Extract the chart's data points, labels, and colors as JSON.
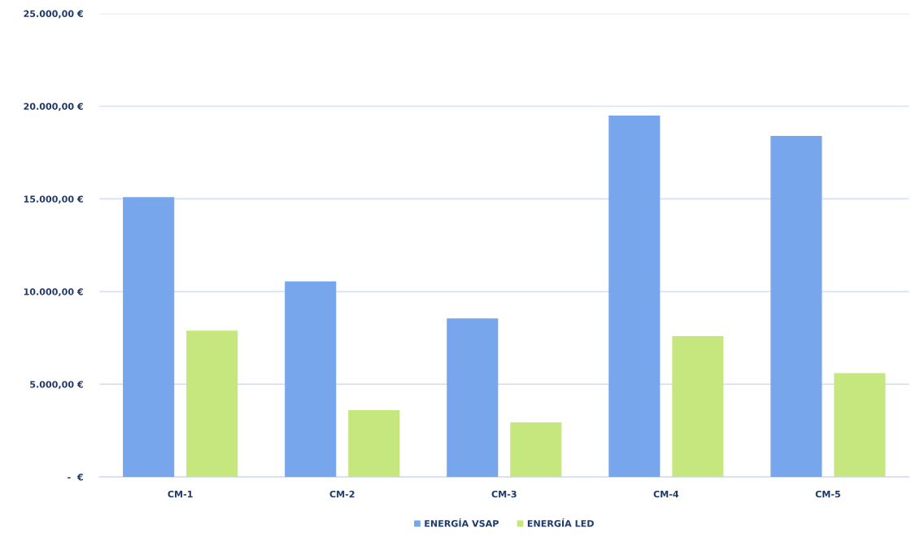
{
  "chart_data": {
    "type": "bar",
    "categories": [
      "CM-1",
      "CM-2",
      "CM-3",
      "CM-4",
      "CM-5"
    ],
    "series": [
      {
        "name": "ENERGÍA VSAP",
        "color": "#78a6ec",
        "values": [
          15100,
          10550,
          8550,
          19500,
          18400
        ]
      },
      {
        "name": "ENERGÍA LED",
        "color": "#c6e67e",
        "values": [
          7900,
          3600,
          2950,
          7600,
          5600
        ]
      }
    ],
    "ylim": [
      0,
      25000
    ],
    "yticks": [
      {
        "value": 0,
        "label": "-  €"
      },
      {
        "value": 5000,
        "label": "5.000,00 €"
      },
      {
        "value": 10000,
        "label": "10.000,00 €"
      },
      {
        "value": 15000,
        "label": "15.000,00 €"
      },
      {
        "value": 20000,
        "label": "20.000,00 €"
      },
      {
        "value": 25000,
        "label": "25.000,00 €"
      }
    ],
    "grid": "y",
    "legend": "bottom"
  }
}
